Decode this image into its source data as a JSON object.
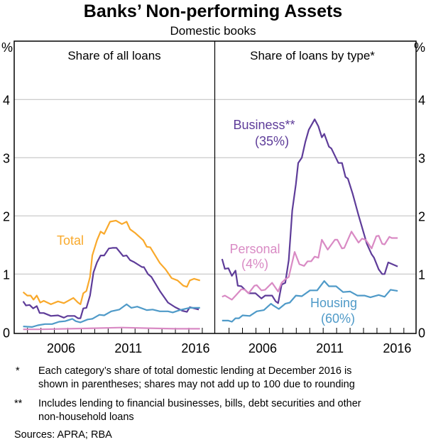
{
  "chart_data": [
    {
      "type": "line",
      "title": "Banks’ Non-performing Assets",
      "subtitle": "Domestic books",
      "panel_title": "Share of all loans",
      "ylabel": "%",
      "ylim": [
        0,
        5
      ],
      "yticks": [
        "0",
        "1",
        "2",
        "3",
        "4"
      ],
      "xticks": [
        {
          "year": 2006,
          "label": "2006"
        },
        {
          "year": 2011,
          "label": "2011"
        },
        {
          "year": 2016,
          "label": "2016"
        }
      ],
      "grid": true,
      "series": [
        {
          "name": "Total",
          "label": "Total",
          "color": "#F9A92B",
          "points": [
            [
              2003.68,
              0.69
            ],
            [
              2003.98,
              0.63
            ],
            [
              2004.24,
              0.63
            ],
            [
              2004.45,
              0.56
            ],
            [
              2004.69,
              0.63
            ],
            [
              2004.95,
              0.51
            ],
            [
              2005.21,
              0.54
            ],
            [
              2005.74,
              0.48
            ],
            [
              2006.27,
              0.53
            ],
            [
              2006.71,
              0.5
            ],
            [
              2007.41,
              0.59
            ],
            [
              2007.76,
              0.51
            ],
            [
              2007.94,
              0.48
            ],
            [
              2008.15,
              0.67
            ],
            [
              2008.38,
              0.71
            ],
            [
              2008.65,
              0.95
            ],
            [
              2008.82,
              1.32
            ],
            [
              2009.17,
              1.58
            ],
            [
              2009.44,
              1.73
            ],
            [
              2009.7,
              1.69
            ],
            [
              2010.14,
              1.9
            ],
            [
              2010.58,
              1.92
            ],
            [
              2011.02,
              1.86
            ],
            [
              2011.37,
              1.9
            ],
            [
              2011.63,
              1.77
            ],
            [
              2011.99,
              1.71
            ],
            [
              2012.61,
              1.58
            ],
            [
              2012.87,
              1.47
            ],
            [
              2013.13,
              1.46
            ],
            [
              2013.84,
              1.19
            ],
            [
              2014.27,
              1.08
            ],
            [
              2014.72,
              0.93
            ],
            [
              2015.16,
              0.89
            ],
            [
              2015.59,
              0.8
            ],
            [
              2015.86,
              0.78
            ],
            [
              2016.07,
              0.89
            ],
            [
              2016.39,
              0.92
            ],
            [
              2016.83,
              0.89
            ]
          ]
        },
        {
          "name": "Business",
          "color": "#5E3C99",
          "points": [
            [
              2003.68,
              0.53
            ],
            [
              2003.89,
              0.46
            ],
            [
              2004.16,
              0.47
            ],
            [
              2004.42,
              0.41
            ],
            [
              2004.69,
              0.45
            ],
            [
              2004.91,
              0.33
            ],
            [
              2005.21,
              0.33
            ],
            [
              2005.74,
              0.28
            ],
            [
              2006.27,
              0.29
            ],
            [
              2006.71,
              0.25
            ],
            [
              2006.97,
              0.28
            ],
            [
              2007.5,
              0.28
            ],
            [
              2007.76,
              0.24
            ],
            [
              2007.94,
              0.24
            ],
            [
              2008.15,
              0.41
            ],
            [
              2008.38,
              0.42
            ],
            [
              2008.65,
              0.63
            ],
            [
              2008.91,
              1.03
            ],
            [
              2009.17,
              1.2
            ],
            [
              2009.44,
              1.32
            ],
            [
              2009.7,
              1.32
            ],
            [
              2010.05,
              1.44
            ],
            [
              2010.32,
              1.45
            ],
            [
              2010.62,
              1.45
            ],
            [
              2011.11,
              1.31
            ],
            [
              2011.37,
              1.32
            ],
            [
              2011.63,
              1.24
            ],
            [
              2011.9,
              1.21
            ],
            [
              2012.52,
              1.12
            ],
            [
              2012.66,
              1.12
            ],
            [
              2012.96,
              1.0
            ],
            [
              2013.22,
              0.95
            ],
            [
              2013.84,
              0.71
            ],
            [
              2014.45,
              0.51
            ],
            [
              2014.98,
              0.43
            ],
            [
              2015.51,
              0.37
            ],
            [
              2015.86,
              0.35
            ],
            [
              2016.07,
              0.43
            ],
            [
              2016.74,
              0.39
            ]
          ]
        },
        {
          "name": "Housing",
          "color": "#4F9AC8",
          "points": [
            [
              2003.68,
              0.1
            ],
            [
              2004.33,
              0.09
            ],
            [
              2004.77,
              0.12
            ],
            [
              2005.3,
              0.14
            ],
            [
              2005.83,
              0.14
            ],
            [
              2006.35,
              0.18
            ],
            [
              2006.8,
              0.19
            ],
            [
              2007.33,
              0.23
            ],
            [
              2007.59,
              0.19
            ],
            [
              2007.94,
              0.17
            ],
            [
              2008.47,
              0.22
            ],
            [
              2008.82,
              0.23
            ],
            [
              2009.35,
              0.3
            ],
            [
              2009.7,
              0.29
            ],
            [
              2010.23,
              0.36
            ],
            [
              2010.84,
              0.39
            ],
            [
              2011.37,
              0.48
            ],
            [
              2011.72,
              0.42
            ],
            [
              2012.16,
              0.44
            ],
            [
              2012.87,
              0.38
            ],
            [
              2013.31,
              0.39
            ],
            [
              2013.84,
              0.36
            ],
            [
              2014.45,
              0.36
            ],
            [
              2014.8,
              0.34
            ],
            [
              2015.33,
              0.38
            ],
            [
              2016.04,
              0.42
            ],
            [
              2016.83,
              0.42
            ]
          ]
        },
        {
          "name": "Personal",
          "color": "#D98AC4",
          "points": [
            [
              2003.68,
              0.05
            ],
            [
              2005.0,
              0.05
            ],
            [
              2007.0,
              0.06
            ],
            [
              2009.0,
              0.07
            ],
            [
              2011.0,
              0.08
            ],
            [
              2013.0,
              0.07
            ],
            [
              2015.0,
              0.06
            ],
            [
              2016.83,
              0.06
            ]
          ]
        }
      ]
    },
    {
      "type": "line",
      "panel_title": "Share of loans by type*",
      "ylabel": "%",
      "ylim": [
        0,
        5
      ],
      "yticks": [
        "0",
        "1",
        "2",
        "3",
        "4"
      ],
      "xticks": [
        {
          "year": 2006,
          "label": "2006"
        },
        {
          "year": 2011,
          "label": "2011"
        },
        {
          "year": 2016,
          "label": "2016"
        }
      ],
      "grid": true,
      "series": [
        {
          "name": "Business",
          "label": "Business**",
          "share": "(35%)",
          "color": "#5E3C99",
          "points": [
            [
              2003.48,
              1.26
            ],
            [
              2003.69,
              1.09
            ],
            [
              2003.95,
              1.1
            ],
            [
              2004.21,
              0.97
            ],
            [
              2004.48,
              1.06
            ],
            [
              2004.65,
              0.8
            ],
            [
              2004.92,
              0.79
            ],
            [
              2005.45,
              0.67
            ],
            [
              2005.97,
              0.67
            ],
            [
              2006.41,
              0.58
            ],
            [
              2006.68,
              0.63
            ],
            [
              2007.2,
              0.63
            ],
            [
              2007.47,
              0.53
            ],
            [
              2007.65,
              0.5
            ],
            [
              2007.91,
              0.82
            ],
            [
              2008.18,
              0.85
            ],
            [
              2008.44,
              1.24
            ],
            [
              2008.7,
              2.09
            ],
            [
              2008.97,
              2.54
            ],
            [
              2009.14,
              2.91
            ],
            [
              2009.41,
              3.0
            ],
            [
              2009.67,
              3.27
            ],
            [
              2009.93,
              3.48
            ],
            [
              2010.37,
              3.66
            ],
            [
              2010.64,
              3.54
            ],
            [
              2010.9,
              3.35
            ],
            [
              2011.08,
              3.41
            ],
            [
              2011.43,
              3.19
            ],
            [
              2011.61,
              3.16
            ],
            [
              2012.13,
              2.91
            ],
            [
              2012.4,
              2.91
            ],
            [
              2012.66,
              2.67
            ],
            [
              2012.84,
              2.64
            ],
            [
              2013.19,
              2.38
            ],
            [
              2013.63,
              2.01
            ],
            [
              2014.25,
              1.52
            ],
            [
              2014.6,
              1.34
            ],
            [
              2014.78,
              1.28
            ],
            [
              2015.13,
              1.08
            ],
            [
              2015.39,
              1.0
            ],
            [
              2015.57,
              1.0
            ],
            [
              2015.84,
              1.2
            ],
            [
              2016.54,
              1.13
            ]
          ]
        },
        {
          "name": "Personal",
          "label": "Personal",
          "share": "(4%)",
          "color": "#D98AC4",
          "points": [
            [
              2003.48,
              0.61
            ],
            [
              2003.69,
              0.63
            ],
            [
              2004.21,
              0.56
            ],
            [
              2004.57,
              0.65
            ],
            [
              2004.92,
              0.74
            ],
            [
              2005.18,
              0.73
            ],
            [
              2005.45,
              0.67
            ],
            [
              2005.89,
              0.8
            ],
            [
              2006.06,
              0.81
            ],
            [
              2006.41,
              0.72
            ],
            [
              2006.68,
              0.73
            ],
            [
              2007.2,
              0.85
            ],
            [
              2007.65,
              0.7
            ],
            [
              2007.91,
              0.85
            ],
            [
              2008.18,
              0.91
            ],
            [
              2008.44,
              0.95
            ],
            [
              2008.88,
              1.38
            ],
            [
              2009.23,
              1.17
            ],
            [
              2009.58,
              1.14
            ],
            [
              2009.84,
              1.22
            ],
            [
              2010.11,
              1.22
            ],
            [
              2010.37,
              1.3
            ],
            [
              2010.64,
              1.28
            ],
            [
              2010.9,
              1.59
            ],
            [
              2011.34,
              1.42
            ],
            [
              2011.87,
              1.59
            ],
            [
              2012.05,
              1.59
            ],
            [
              2012.4,
              1.44
            ],
            [
              2012.57,
              1.45
            ],
            [
              2013.1,
              1.73
            ],
            [
              2013.63,
              1.54
            ],
            [
              2013.89,
              1.61
            ],
            [
              2014.16,
              1.59
            ],
            [
              2014.6,
              1.44
            ],
            [
              2014.95,
              1.65
            ],
            [
              2015.13,
              1.66
            ],
            [
              2015.39,
              1.52
            ],
            [
              2015.57,
              1.51
            ],
            [
              2015.92,
              1.64
            ],
            [
              2016.1,
              1.62
            ],
            [
              2016.54,
              1.62
            ]
          ]
        },
        {
          "name": "Housing",
          "label": "Housing",
          "share": "(60%)",
          "color": "#4F9AC8",
          "points": [
            [
              2003.48,
              0.2
            ],
            [
              2003.95,
              0.2
            ],
            [
              2004.21,
              0.18
            ],
            [
              2004.48,
              0.24
            ],
            [
              2004.74,
              0.24
            ],
            [
              2005.01,
              0.29
            ],
            [
              2005.54,
              0.28
            ],
            [
              2006.06,
              0.36
            ],
            [
              2006.59,
              0.38
            ],
            [
              2007.12,
              0.49
            ],
            [
              2007.29,
              0.46
            ],
            [
              2007.7,
              0.4
            ],
            [
              2008.18,
              0.49
            ],
            [
              2008.52,
              0.51
            ],
            [
              2008.97,
              0.63
            ],
            [
              2009.41,
              0.62
            ],
            [
              2010.02,
              0.72
            ],
            [
              2010.55,
              0.72
            ],
            [
              2011.08,
              0.88
            ],
            [
              2011.43,
              0.79
            ],
            [
              2011.96,
              0.79
            ],
            [
              2012.48,
              0.69
            ],
            [
              2013.01,
              0.7
            ],
            [
              2013.54,
              0.63
            ],
            [
              2014.07,
              0.63
            ],
            [
              2014.51,
              0.6
            ],
            [
              2015.13,
              0.64
            ],
            [
              2015.57,
              0.61
            ],
            [
              2016.01,
              0.73
            ],
            [
              2016.54,
              0.71
            ]
          ]
        }
      ]
    }
  ],
  "footnotes": [
    {
      "marker": "*",
      "lines": [
        "Each category’s share of total domestic lending at December 2016 is",
        "shown in parentheses; shares may not add up to 100 due to rounding"
      ]
    },
    {
      "marker": "**",
      "lines": [
        "Includes lending to financial businesses, bills, debt securities and other",
        "non-household loans"
      ]
    }
  ],
  "sources": "Sources:   APRA; RBA"
}
